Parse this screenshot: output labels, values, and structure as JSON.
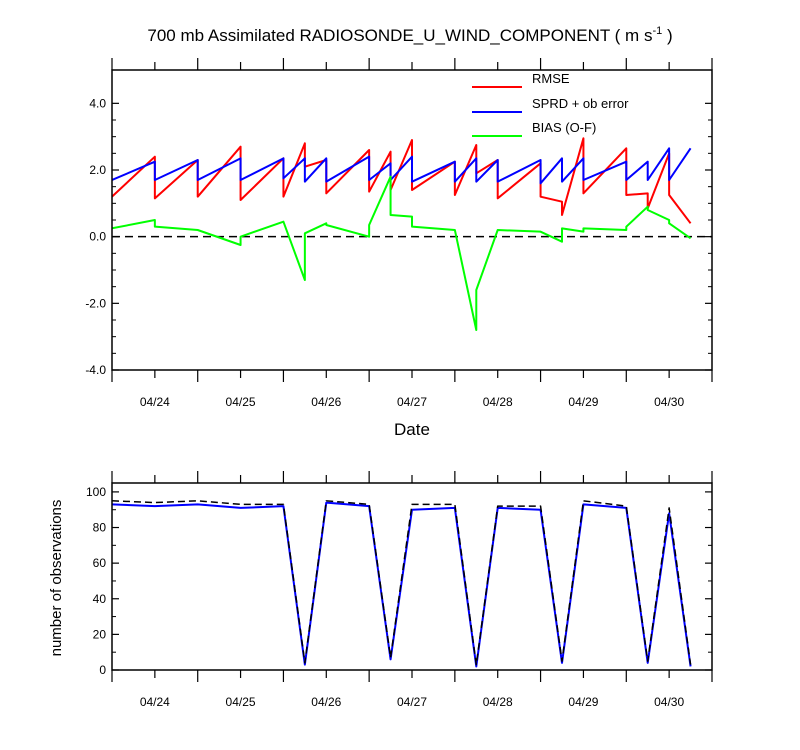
{
  "chart_data": [
    {
      "type": "line",
      "title_main": "700 mb Assimilated RADIOSONDE_U_WIND_COMPONENT ( m s",
      "title_sup": "-1",
      "title_end": " )",
      "xlabel": "Date",
      "ylabel": "",
      "xlim": [
        23.5,
        30.5
      ],
      "ylim": [
        -4,
        5
      ],
      "yticks": [
        -4,
        -2,
        0,
        2,
        4
      ],
      "ytick_labels": [
        "-4.0",
        "-2.0",
        "0.0",
        "2.0",
        "4.0"
      ],
      "xticks": [
        24,
        25,
        26,
        27,
        28,
        29,
        30
      ],
      "xtick_labels": [
        "04/24",
        "04/25",
        "04/26",
        "04/27",
        "04/28",
        "04/29",
        "04/30"
      ],
      "zero_line": true,
      "legend_position": "top-right",
      "series": [
        {
          "name": "RMSE",
          "color": "#ff0000",
          "x": [
            23.5,
            24.0,
            24.0,
            24.5,
            24.5,
            25.0,
            25.0,
            25.5,
            25.5,
            25.75,
            25.75,
            25.75,
            26.0,
            26.0,
            26.5,
            26.5,
            26.75,
            26.75,
            27.0,
            27.0,
            27.5,
            27.5,
            27.75,
            27.75,
            28.0,
            28.0,
            28.5,
            28.5,
            28.75,
            28.75,
            29.0,
            29.0,
            29.5,
            29.5,
            29.75,
            29.75,
            30.0,
            30.0,
            30.25
          ],
          "y": [
            1.2,
            2.4,
            1.15,
            2.3,
            1.2,
            2.7,
            1.1,
            2.35,
            1.2,
            2.8,
            2.1,
            2.1,
            2.3,
            1.3,
            2.6,
            1.35,
            2.55,
            1.4,
            2.9,
            1.4,
            2.25,
            1.25,
            2.75,
            1.9,
            2.3,
            1.15,
            2.2,
            1.2,
            1.05,
            0.65,
            2.95,
            1.3,
            2.65,
            1.25,
            1.3,
            0.85,
            2.5,
            1.25,
            0.4
          ]
        },
        {
          "name": "SPRD + ob error",
          "color": "#0000ff",
          "x": [
            23.5,
            24.0,
            24.0,
            24.5,
            24.5,
            25.0,
            25.0,
            25.5,
            25.5,
            25.75,
            25.75,
            26.0,
            26.0,
            26.5,
            26.5,
            26.75,
            26.75,
            27.0,
            27.0,
            27.5,
            27.5,
            27.75,
            27.75,
            28.0,
            28.0,
            28.5,
            28.5,
            28.75,
            28.75,
            29.0,
            29.0,
            29.5,
            29.5,
            29.75,
            29.75,
            30.0,
            30.0,
            30.25
          ],
          "y": [
            1.7,
            2.25,
            1.7,
            2.3,
            1.7,
            2.35,
            1.7,
            2.35,
            1.75,
            2.35,
            1.65,
            2.35,
            1.65,
            2.4,
            1.7,
            2.2,
            1.7,
            2.4,
            1.65,
            2.25,
            1.65,
            2.35,
            1.65,
            2.3,
            1.65,
            2.3,
            1.6,
            2.35,
            1.65,
            2.35,
            1.7,
            2.25,
            1.7,
            2.25,
            1.7,
            2.65,
            1.7,
            2.65
          ]
        },
        {
          "name": "BIAS (O-F)",
          "color": "#00ff00",
          "x": [
            23.5,
            24.0,
            24.0,
            24.5,
            24.5,
            25.0,
            25.0,
            25.5,
            25.75,
            25.75,
            26.0,
            26.0,
            26.5,
            26.5,
            26.75,
            26.75,
            27.0,
            27.0,
            27.5,
            27.75,
            27.75,
            28.0,
            28.0,
            28.5,
            28.75,
            28.75,
            29.0,
            29.0,
            29.5,
            29.5,
            29.75,
            29.75,
            30.0,
            30.0,
            30.25
          ],
          "y": [
            0.25,
            0.5,
            0.3,
            0.2,
            0.2,
            -0.25,
            0.0,
            0.45,
            -1.3,
            0.1,
            0.4,
            0.35,
            0.0,
            0.35,
            1.8,
            0.65,
            0.6,
            0.3,
            0.2,
            -2.8,
            -1.6,
            0.2,
            0.2,
            0.15,
            -0.15,
            0.25,
            0.15,
            0.25,
            0.2,
            0.3,
            0.9,
            0.8,
            0.5,
            0.4,
            -0.05
          ]
        }
      ]
    },
    {
      "type": "line",
      "xlabel": "",
      "ylabel": "number of observations",
      "xlim": [
        23.5,
        30.5
      ],
      "ylim": [
        0,
        105
      ],
      "yticks": [
        0,
        20,
        40,
        60,
        80,
        100
      ],
      "ytick_labels": [
        "0",
        "20",
        "40",
        "60",
        "80",
        "100"
      ],
      "xticks": [
        24,
        25,
        26,
        27,
        28,
        29,
        30
      ],
      "xtick_labels": [
        "04/24",
        "04/25",
        "04/26",
        "04/27",
        "04/28",
        "04/29",
        "04/30"
      ],
      "series": [
        {
          "color": "#0000ff",
          "style": "solid",
          "x": [
            23.5,
            24.0,
            24.5,
            25.0,
            25.5,
            25.75,
            26.0,
            26.5,
            26.75,
            27.0,
            27.5,
            27.75,
            28.0,
            28.5,
            28.75,
            29.0,
            29.5,
            29.75,
            30.0,
            30.25
          ],
          "y": [
            93,
            92,
            93,
            91,
            92,
            3,
            94,
            92,
            6,
            90,
            91,
            2,
            91,
            90,
            4,
            93,
            91,
            4,
            88,
            2
          ]
        },
        {
          "color": "#000000",
          "style": "dashed",
          "x": [
            23.5,
            24.0,
            24.5,
            25.0,
            25.5,
            25.75,
            26.0,
            26.5,
            26.75,
            27.0,
            27.5,
            27.75,
            28.0,
            28.5,
            28.75,
            29.0,
            29.5,
            29.75,
            30.0,
            30.25
          ],
          "y": [
            95,
            94,
            95,
            93,
            93,
            4,
            95,
            93,
            7,
            93,
            93,
            3,
            92,
            92,
            5,
            95,
            92,
            5,
            91,
            3
          ]
        }
      ]
    }
  ]
}
